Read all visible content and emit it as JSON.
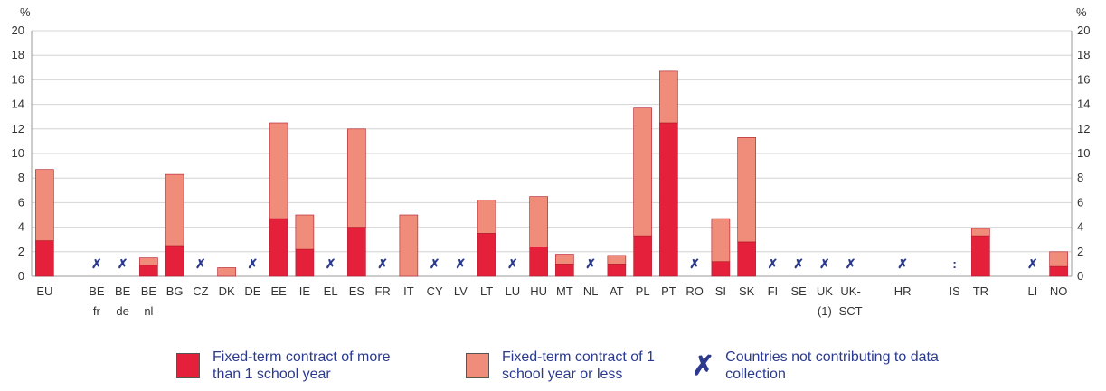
{
  "chart_data": {
    "type": "stacked_bar",
    "ylabel": "%",
    "categories": [
      [
        "EU"
      ],
      null,
      [
        "BE",
        "fr"
      ],
      [
        "BE",
        "de"
      ],
      [
        "BE",
        "nl"
      ],
      [
        "BG"
      ],
      [
        "CZ"
      ],
      [
        "DK"
      ],
      [
        "DE"
      ],
      [
        "EE"
      ],
      [
        "IE"
      ],
      [
        "EL"
      ],
      [
        "ES"
      ],
      [
        "FR"
      ],
      [
        "IT"
      ],
      [
        "CY"
      ],
      [
        "LV"
      ],
      [
        "LT"
      ],
      [
        "LU"
      ],
      [
        "HU"
      ],
      [
        "MT"
      ],
      [
        "NL"
      ],
      [
        "AT"
      ],
      [
        "PL"
      ],
      [
        "PT"
      ],
      [
        "RO"
      ],
      [
        "SI"
      ],
      [
        "SK"
      ],
      [
        "FI"
      ],
      [
        "SE"
      ],
      [
        "UK",
        "(1)"
      ],
      [
        "UK-",
        "SCT"
      ],
      null,
      [
        "HR"
      ],
      null,
      [
        "IS"
      ],
      [
        "TR"
      ],
      null,
      [
        "LI"
      ],
      [
        "NO"
      ]
    ],
    "series": [
      {
        "name": "Fixed-term contract of more than 1 school year",
        "color": "#e5203b",
        "values": [
          2.9,
          null,
          null,
          null,
          0.9,
          2.5,
          null,
          0,
          null,
          4.7,
          2.2,
          null,
          4.0,
          null,
          0,
          null,
          null,
          3.5,
          null,
          2.4,
          1.0,
          null,
          1.0,
          3.3,
          12.5,
          null,
          1.2,
          2.8,
          null,
          null,
          null,
          null,
          null,
          null,
          null,
          null,
          3.3,
          null,
          null,
          0.8
        ]
      },
      {
        "name": "Fixed-term contract of 1 school year or less",
        "color": "#f08c7a",
        "values": [
          5.8,
          null,
          null,
          null,
          0.6,
          5.8,
          null,
          0.7,
          null,
          7.8,
          2.8,
          null,
          8.0,
          null,
          5.0,
          null,
          null,
          2.7,
          null,
          4.1,
          0.8,
          null,
          0.7,
          10.4,
          4.2,
          null,
          3.5,
          8.5,
          null,
          null,
          null,
          null,
          null,
          null,
          null,
          null,
          0.6,
          null,
          null,
          1.2
        ]
      }
    ],
    "markers": [
      null,
      null,
      "✗",
      "✗",
      null,
      null,
      "✗",
      null,
      "✗",
      null,
      null,
      "✗",
      null,
      "✗",
      null,
      "✗",
      "✗",
      null,
      "✗",
      null,
      null,
      "✗",
      null,
      null,
      null,
      "✗",
      null,
      null,
      "✗",
      "✗",
      "✗",
      "✗",
      null,
      "✗",
      null,
      ":",
      null,
      null,
      "✗",
      null
    ],
    "marker_legend": {
      "symbol": "✗",
      "label": "Countries not contributing to data collection"
    },
    "ylim": [
      0,
      20
    ],
    "yticks": [
      0,
      2,
      4,
      6,
      8,
      10,
      12,
      14,
      16,
      18,
      20
    ],
    "grid": true
  }
}
